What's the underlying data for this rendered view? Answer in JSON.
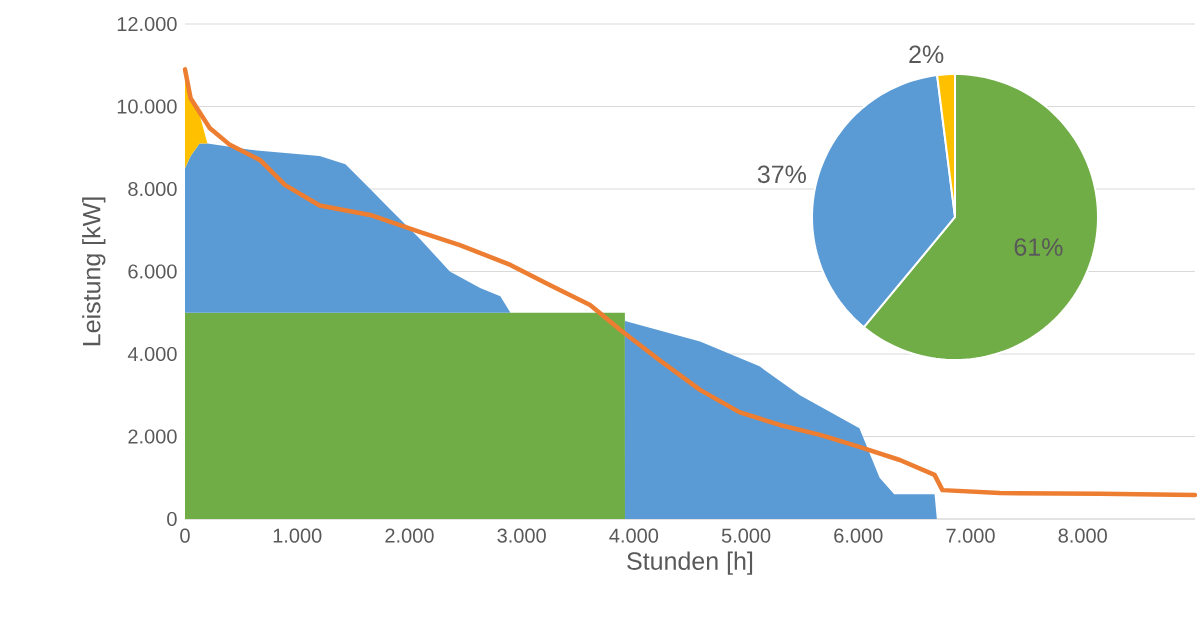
{
  "chart_data": [
    {
      "type": "area",
      "stacked": true,
      "xlabel": "Stunden [h]",
      "ylabel": "Leistung [kW]",
      "grid": "y",
      "xlim": [
        0,
        9000
      ],
      "ylim": [
        0,
        12000
      ],
      "xticks": [
        0,
        {
          "value": 1000,
          "label": "1.000"
        },
        {
          "value": 2000,
          "label": "2.000"
        },
        {
          "value": 3000,
          "label": "3.000"
        },
        {
          "value": 4000,
          "label": "4.000"
        },
        {
          "value": 5000,
          "label": "5.000"
        },
        {
          "value": 6000,
          "label": "6.000"
        },
        {
          "value": 7000,
          "label": "7.000"
        },
        {
          "value": 8000,
          "label": "8.000"
        }
      ],
      "yticks": [
        0,
        {
          "value": 2000,
          "label": "2.000"
        },
        {
          "value": 4000,
          "label": "4.000"
        },
        {
          "value": 6000,
          "label": "6.000"
        },
        {
          "value": 8000,
          "label": "8.000"
        },
        {
          "value": 10000,
          "label": "10.000"
        },
        {
          "value": 12000,
          "label": "12.000"
        }
      ],
      "x": [
        0,
        50,
        130,
        200,
        580,
        1200,
        1430,
        1650,
        1830,
        2090,
        2360,
        2630,
        2810,
        2900,
        2901,
        3920,
        3921,
        4590,
        5120,
        5480,
        6010,
        6190,
        6320,
        6680,
        6700
      ],
      "series": [
        {
          "color": "#70ad47",
          "values": [
            5000,
            5000,
            5000,
            5000,
            5000,
            5000,
            5000,
            5000,
            5000,
            5000,
            5000,
            5000,
            5000,
            5000,
            5000,
            5000,
            0,
            0,
            0,
            0,
            0,
            0,
            0,
            0,
            0
          ]
        },
        {
          "color": "#5b9bd5",
          "values": [
            3500,
            3800,
            4100,
            4100,
            3950,
            3800,
            3600,
            3000,
            2500,
            1800,
            1000,
            600,
            400,
            0,
            0,
            0,
            4800,
            4300,
            3700,
            3000,
            2200,
            1000,
            600,
            600,
            0
          ]
        },
        {
          "color": "#ffc000",
          "values": [
            2500,
            1500,
            700,
            0,
            0,
            0,
            0,
            0,
            0,
            0,
            0,
            0,
            0,
            0,
            0,
            0,
            0,
            0,
            0,
            0,
            0,
            0,
            0,
            0,
            0
          ]
        },
        {
          "type": "line",
          "color": "#ed7d31",
          "x": [
            0,
            50,
            220,
            400,
            670,
            890,
            1200,
            1650,
            2090,
            2450,
            2900,
            3250,
            3610,
            3880,
            4230,
            4590,
            4940,
            5300,
            5660,
            6010,
            6370,
            6680,
            6750,
            7260,
            8150,
            9000
          ],
          "values": [
            10900,
            10200,
            9480,
            9070,
            8700,
            8100,
            7600,
            7370,
            6960,
            6640,
            6160,
            5670,
            5190,
            4580,
            3850,
            3130,
            2590,
            2280,
            2040,
            1750,
            1430,
            1070,
            700,
            630,
            610,
            580
          ]
        }
      ]
    },
    {
      "type": "pie",
      "categories": [
        null,
        null,
        null
      ],
      "values": [
        61,
        37,
        2
      ],
      "colors": [
        "#70ad47",
        "#5b9bd5",
        "#ffc000"
      ],
      "value_labels": [
        "61%",
        "37%",
        "2%"
      ]
    }
  ]
}
